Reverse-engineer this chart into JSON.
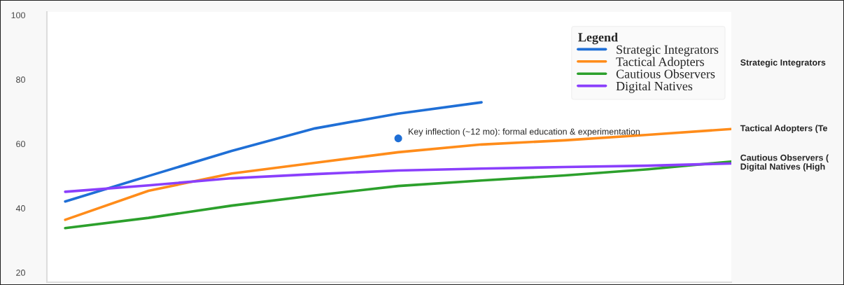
{
  "chart_data": {
    "type": "line",
    "categories": [
      null,
      null,
      null,
      null,
      null,
      null,
      null,
      null,
      null
    ],
    "ylim": [
      17,
      101
    ],
    "yticks": [
      20,
      40,
      60,
      80,
      100
    ],
    "legend": "top right",
    "legend_title": "Legend",
    "grid": false,
    "marker": "none",
    "line_style": "solid",
    "series": [
      {
        "name": "Strategic Integrators",
        "color": "#1f6fd6",
        "values": [
          42.1,
          50.0,
          57.8,
          64.8,
          69.4,
          72.9,
          null,
          null,
          null
        ]
      },
      {
        "name": "Tactical Adopters",
        "color": "#ff8c1a",
        "values": [
          36.4,
          45.4,
          50.8,
          54.1,
          57.4,
          59.8,
          61.1,
          62.8,
          64.6
        ]
      },
      {
        "name": "Cautious Observers",
        "color": "#2ca02c",
        "values": [
          33.8,
          37.0,
          40.8,
          44.0,
          46.9,
          48.6,
          50.2,
          52.1,
          54.5
        ]
      },
      {
        "name": "Digital Natives",
        "color": "#8a3ffc",
        "values": [
          45.1,
          47.1,
          49.3,
          50.6,
          51.7,
          52.3,
          52.8,
          53.2,
          53.9
        ]
      },
      {
        "type": "scatter",
        "marker": "circle",
        "color": "#1f6fd6",
        "values": [
          null,
          null,
          null,
          null,
          61.7,
          null,
          null,
          null,
          null
        ]
      }
    ],
    "annotations": [
      "Key inflection (~12 mo): formal education & experimentation",
      "Strategic Integrators",
      "Tactical Adopters (Te",
      "Cautious Observers (",
      "Digital Natives (High"
    ]
  }
}
